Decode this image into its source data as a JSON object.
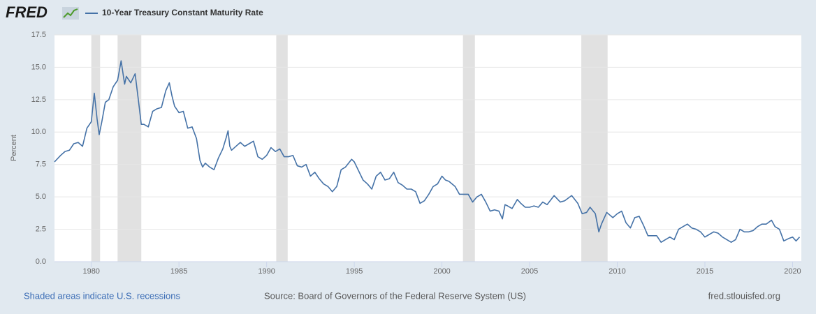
{
  "chart_data": {
    "type": "line",
    "logo": "FRED",
    "y_label": "Percent",
    "note": "Shaded areas indicate U.S. recessions",
    "source": "Source: Board of Governors of the Federal Reserve System (US)",
    "site": "fred.stlouisfed.org",
    "grid": true,
    "recession_color": "#e1e1e1",
    "recessions": [
      [
        1980.0,
        1980.5
      ],
      [
        1981.5,
        1982.85
      ],
      [
        1990.55,
        1991.2
      ],
      [
        2001.2,
        2001.88
      ],
      [
        2007.95,
        2009.45
      ]
    ],
    "xlim": [
      1977.9,
      2020.5
    ],
    "xticks": [
      1980,
      1985,
      1990,
      1995,
      2000,
      2005,
      2010,
      2015,
      2020
    ],
    "ylim": [
      0,
      17.5
    ],
    "yticks": [
      {
        "value": 0,
        "label": "0.0"
      },
      2.5,
      {
        "value": 5,
        "label": "5.0"
      },
      7.5,
      {
        "value": 10,
        "label": "10.0"
      },
      12.5,
      {
        "value": 15,
        "label": "15.0"
      },
      17.5
    ],
    "x": [
      1977.9,
      1978.25,
      1978.5,
      1978.75,
      1979.0,
      1979.25,
      1979.5,
      1979.75,
      1980.0,
      1980.17,
      1980.33,
      1980.45,
      1980.6,
      1980.8,
      1981.0,
      1981.25,
      1981.5,
      1981.7,
      1981.9,
      1982.0,
      1982.25,
      1982.5,
      1982.7,
      1982.85,
      1983.0,
      1983.25,
      1983.5,
      1983.75,
      1984.0,
      1984.25,
      1984.45,
      1984.6,
      1984.75,
      1985.0,
      1985.25,
      1985.5,
      1985.75,
      1986.0,
      1986.2,
      1986.35,
      1986.5,
      1986.75,
      1987.0,
      1987.25,
      1987.5,
      1987.7,
      1987.8,
      1987.9,
      1988.0,
      1988.25,
      1988.5,
      1988.75,
      1989.0,
      1989.25,
      1989.5,
      1989.75,
      1990.0,
      1990.25,
      1990.5,
      1990.75,
      1991.0,
      1991.25,
      1991.5,
      1991.75,
      1992.0,
      1992.25,
      1992.5,
      1992.75,
      1993.0,
      1993.25,
      1993.5,
      1993.75,
      1994.0,
      1994.25,
      1994.5,
      1994.85,
      1995.0,
      1995.25,
      1995.5,
      1995.75,
      1996.0,
      1996.25,
      1996.5,
      1996.75,
      1997.0,
      1997.25,
      1997.5,
      1997.75,
      1998.0,
      1998.25,
      1998.5,
      1998.75,
      1999.0,
      1999.25,
      1999.5,
      1999.75,
      2000.0,
      2000.2,
      2000.4,
      2000.75,
      2001.0,
      2001.25,
      2001.5,
      2001.75,
      2002.0,
      2002.25,
      2002.5,
      2002.75,
      2003.0,
      2003.25,
      2003.45,
      2003.6,
      2003.75,
      2004.0,
      2004.3,
      2004.5,
      2004.75,
      2005.0,
      2005.25,
      2005.5,
      2005.75,
      2006.0,
      2006.4,
      2006.75,
      2007.0,
      2007.4,
      2007.75,
      2008.0,
      2008.25,
      2008.45,
      2008.75,
      2008.95,
      2009.1,
      2009.4,
      2009.75,
      2010.0,
      2010.25,
      2010.5,
      2010.75,
      2011.0,
      2011.25,
      2011.5,
      2011.75,
      2012.0,
      2012.25,
      2012.5,
      2012.75,
      2013.0,
      2013.25,
      2013.5,
      2013.75,
      2014.0,
      2014.25,
      2014.5,
      2014.75,
      2015.0,
      2015.25,
      2015.5,
      2015.75,
      2016.0,
      2016.5,
      2016.75,
      2017.0,
      2017.25,
      2017.5,
      2017.75,
      2018.0,
      2018.25,
      2018.5,
      2018.8,
      2019.0,
      2019.25,
      2019.5,
      2019.8,
      2020.0,
      2020.2,
      2020.4
    ],
    "series": [
      {
        "name": "10-Year Treasury Constant Maturity Rate",
        "color": "#4572a7",
        "values": [
          7.7,
          8.2,
          8.5,
          8.6,
          9.1,
          9.2,
          8.9,
          10.3,
          10.8,
          13.0,
          11.0,
          9.8,
          10.8,
          12.3,
          12.5,
          13.5,
          14.0,
          15.5,
          13.7,
          14.3,
          13.8,
          14.5,
          12.3,
          10.6,
          10.6,
          10.4,
          11.6,
          11.8,
          11.9,
          13.2,
          13.8,
          12.8,
          12.0,
          11.5,
          11.6,
          10.3,
          10.4,
          9.5,
          7.8,
          7.3,
          7.6,
          7.3,
          7.1,
          8.0,
          8.7,
          9.6,
          10.1,
          8.9,
          8.6,
          8.9,
          9.2,
          8.9,
          9.1,
          9.3,
          8.1,
          7.9,
          8.2,
          8.8,
          8.5,
          8.7,
          8.1,
          8.1,
          8.2,
          7.4,
          7.3,
          7.5,
          6.6,
          6.9,
          6.4,
          6.0,
          5.8,
          5.4,
          5.8,
          7.1,
          7.3,
          7.9,
          7.7,
          7.0,
          6.3,
          6.0,
          5.6,
          6.6,
          6.9,
          6.3,
          6.4,
          6.9,
          6.1,
          5.9,
          5.6,
          5.6,
          5.4,
          4.5,
          4.7,
          5.2,
          5.8,
          6.0,
          6.6,
          6.3,
          6.2,
          5.8,
          5.2,
          5.2,
          5.2,
          4.6,
          5.0,
          5.2,
          4.6,
          3.9,
          4.0,
          3.9,
          3.3,
          4.4,
          4.3,
          4.1,
          4.8,
          4.5,
          4.2,
          4.2,
          4.3,
          4.2,
          4.6,
          4.4,
          5.1,
          4.6,
          4.7,
          5.1,
          4.5,
          3.7,
          3.8,
          4.2,
          3.7,
          2.3,
          2.9,
          3.8,
          3.4,
          3.7,
          3.9,
          3.0,
          2.6,
          3.4,
          3.5,
          2.8,
          2.0,
          2.0,
          2.0,
          1.5,
          1.7,
          1.9,
          1.7,
          2.5,
          2.7,
          2.9,
          2.6,
          2.5,
          2.3,
          1.9,
          2.1,
          2.3,
          2.2,
          1.9,
          1.5,
          1.7,
          2.5,
          2.3,
          2.3,
          2.4,
          2.7,
          2.9,
          2.9,
          3.2,
          2.7,
          2.5,
          1.6,
          1.8,
          1.9,
          1.6,
          1.9
        ]
      }
    ]
  }
}
